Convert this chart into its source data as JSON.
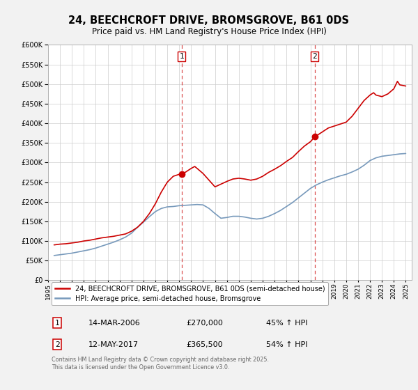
{
  "title": "24, BEECHCROFT DRIVE, BROMSGROVE, B61 0DS",
  "subtitle": "Price paid vs. HM Land Registry's House Price Index (HPI)",
  "background_color": "#f2f2f2",
  "plot_bg_color": "#ffffff",
  "red_color": "#cc0000",
  "blue_color": "#7799bb",
  "dashed_color": "#cc0000",
  "ylim": [
    0,
    600000
  ],
  "xlim_start": 1995.0,
  "xlim_end": 2025.5,
  "sale1_x": 2006.2,
  "sale1_y": 270000,
  "sale2_x": 2017.37,
  "sale2_y": 365500,
  "legend_label_red": "24, BEECHCROFT DRIVE, BROMSGROVE, B61 0DS (semi-detached house)",
  "legend_label_blue": "HPI: Average price, semi-detached house, Bromsgrove",
  "annotation1_date": "14-MAR-2006",
  "annotation1_price": "£270,000",
  "annotation1_hpi": "45% ↑ HPI",
  "annotation2_date": "12-MAY-2017",
  "annotation2_price": "£365,500",
  "annotation2_hpi": "54% ↑ HPI",
  "footer": "Contains HM Land Registry data © Crown copyright and database right 2025.\nThis data is licensed under the Open Government Licence v3.0.",
  "red_series_years": [
    1995.5,
    1996.0,
    1996.5,
    1997.0,
    1997.5,
    1998.0,
    1998.5,
    1999.0,
    1999.5,
    2000.0,
    2000.5,
    2001.0,
    2001.5,
    2002.0,
    2002.5,
    2003.0,
    2003.5,
    2004.0,
    2004.5,
    2005.0,
    2005.5,
    2006.0,
    2006.2,
    2006.5,
    2007.0,
    2007.3,
    2007.5,
    2008.0,
    2008.5,
    2009.0,
    2009.5,
    2010.0,
    2010.5,
    2011.0,
    2011.5,
    2012.0,
    2012.5,
    2013.0,
    2013.5,
    2014.0,
    2014.5,
    2015.0,
    2015.5,
    2016.0,
    2016.5,
    2017.0,
    2017.37,
    2017.5,
    2018.0,
    2018.5,
    2019.0,
    2019.5,
    2020.0,
    2020.5,
    2021.0,
    2021.5,
    2022.0,
    2022.3,
    2022.5,
    2023.0,
    2023.5,
    2024.0,
    2024.3,
    2024.5,
    2025.0
  ],
  "red_series_values": [
    90000,
    92000,
    93000,
    95000,
    97000,
    100000,
    102000,
    105000,
    108000,
    110000,
    112000,
    115000,
    118000,
    125000,
    135000,
    150000,
    170000,
    195000,
    225000,
    250000,
    265000,
    270000,
    270000,
    275000,
    285000,
    290000,
    285000,
    272000,
    255000,
    238000,
    245000,
    252000,
    258000,
    260000,
    258000,
    255000,
    258000,
    265000,
    275000,
    283000,
    292000,
    303000,
    313000,
    328000,
    342000,
    353000,
    365500,
    368000,
    378000,
    388000,
    393000,
    398000,
    403000,
    418000,
    438000,
    458000,
    472000,
    478000,
    472000,
    468000,
    475000,
    488000,
    507000,
    498000,
    495000
  ],
  "blue_series_years": [
    1995.5,
    1996.0,
    1996.5,
    1997.0,
    1997.5,
    1998.0,
    1998.5,
    1999.0,
    1999.5,
    2000.0,
    2000.5,
    2001.0,
    2001.5,
    2002.0,
    2002.5,
    2003.0,
    2003.5,
    2004.0,
    2004.5,
    2005.0,
    2005.5,
    2006.0,
    2006.5,
    2007.0,
    2007.5,
    2008.0,
    2008.5,
    2009.0,
    2009.5,
    2010.0,
    2010.5,
    2011.0,
    2011.5,
    2012.0,
    2012.5,
    2013.0,
    2013.5,
    2014.0,
    2014.5,
    2015.0,
    2015.5,
    2016.0,
    2016.5,
    2017.0,
    2017.5,
    2018.0,
    2018.5,
    2019.0,
    2019.5,
    2020.0,
    2020.5,
    2021.0,
    2021.5,
    2022.0,
    2022.5,
    2023.0,
    2023.5,
    2024.0,
    2024.5,
    2025.0
  ],
  "blue_series_values": [
    63000,
    65000,
    67000,
    69000,
    72000,
    75000,
    78000,
    82000,
    87000,
    92000,
    97000,
    103000,
    110000,
    120000,
    135000,
    148000,
    162000,
    175000,
    183000,
    187000,
    188000,
    190000,
    191000,
    192000,
    193000,
    192000,
    183000,
    170000,
    158000,
    160000,
    163000,
    163000,
    161000,
    158000,
    156000,
    158000,
    163000,
    170000,
    178000,
    188000,
    198000,
    210000,
    222000,
    234000,
    243000,
    250000,
    256000,
    261000,
    266000,
    270000,
    276000,
    283000,
    293000,
    305000,
    312000,
    316000,
    318000,
    320000,
    322000,
    323000
  ]
}
